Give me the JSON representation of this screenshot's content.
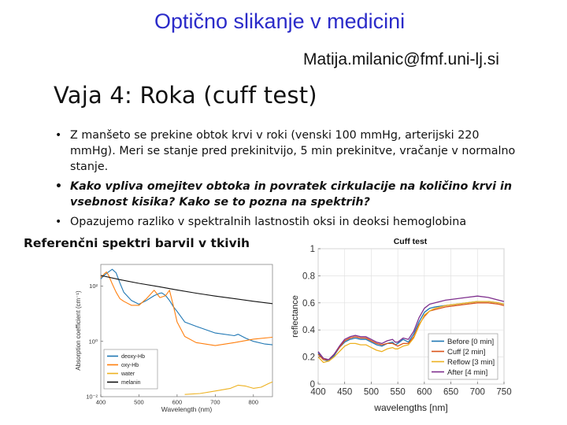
{
  "header": {
    "title": "Optično slikanje v medicini",
    "email": "Matija.milanic@fmf.uni-lj.si"
  },
  "slide": {
    "title": "Vaja 4: Roka (cuff test)",
    "bullets": [
      {
        "text": "Z manšeto se prekine obtok krvi v roki (venski 100 mmHg, arterijski 220 mmHg). Meri se stanje pred prekinitvijo, 5 min prekinitve, vračanje v normalno stanje.",
        "emphasis": false
      },
      {
        "text": "Kako vpliva omejitev obtoka in povratek cirkulacije na količino krvi in vsebnost kisika? Kako se to pozna na spektrih?",
        "emphasis": true
      },
      {
        "text": "Opazujemo razliko v spektralnih lastnostih oksi in deoksi hemoglobina",
        "emphasis": false
      }
    ]
  },
  "figures": {
    "left_title": "Referenčni spektri barvil v tkivih",
    "left_axis": {
      "ylabel": "Absorption coefficient (cm⁻¹)",
      "xlabel": "Wavelength (nm)"
    },
    "right_title": "Cuff test",
    "right_axis": {
      "ylabel": "reflectance",
      "xlabel": "wavelengths [nm]"
    }
  },
  "chart_data": [
    {
      "type": "line",
      "title": "Referenčni spektri barvil v tkivih",
      "xlabel": "Wavelength (nm)",
      "ylabel": "Absorption coefficient (cm⁻¹)",
      "yscale": "log",
      "xlim": [
        400,
        850
      ],
      "ylim": [
        0.01,
        600
      ],
      "xticks": [
        400,
        500,
        600,
        700,
        800
      ],
      "yticks": [
        {
          "value": 100,
          "label": "10²"
        },
        {
          "value": 1,
          "label": "10⁰"
        },
        {
          "value": 0.01,
          "label": "10⁻²"
        }
      ],
      "legend_position": "bottom-left",
      "series": [
        {
          "name": "deoxy-Hb",
          "color": "#1f77b4",
          "x": [
            400,
            410,
            420,
            430,
            440,
            450,
            460,
            480,
            500,
            520,
            540,
            555,
            560,
            570,
            580,
            590,
            600,
            620,
            650,
            700,
            750,
            760,
            780,
            800,
            830,
            850
          ],
          "y": [
            180,
            250,
            320,
            400,
            300,
            130,
            60,
            30,
            22,
            30,
            45,
            55,
            56,
            45,
            30,
            18,
            12,
            5,
            3.5,
            2,
            1.6,
            1.8,
            1.3,
            1.0,
            0.8,
            0.75
          ]
        },
        {
          "name": "oxy-Hb",
          "color": "#ff7f0e",
          "x": [
            400,
            410,
            415,
            420,
            430,
            440,
            450,
            460,
            480,
            500,
            520,
            540,
            555,
            570,
            580,
            590,
            600,
            620,
            650,
            700,
            750,
            800,
            850
          ],
          "y": [
            200,
            280,
            320,
            250,
            120,
            60,
            35,
            28,
            20,
            20,
            35,
            70,
            38,
            45,
            70,
            20,
            5,
            1.5,
            0.9,
            0.7,
            0.9,
            1.2,
            1.4
          ]
        },
        {
          "name": "water",
          "color": "#edb120",
          "x": [
            620,
            660,
            700,
            740,
            760,
            780,
            800,
            820,
            840,
            850
          ],
          "y": [
            0.012,
            0.013,
            0.016,
            0.02,
            0.026,
            0.024,
            0.02,
            0.022,
            0.03,
            0.034
          ]
        },
        {
          "name": "melanin",
          "color": "#111111",
          "x": [
            400,
            450,
            500,
            550,
            600,
            650,
            700,
            750,
            800,
            850
          ],
          "y": [
            240,
            170,
            125,
            95,
            72,
            55,
            43,
            35,
            28,
            23
          ]
        }
      ]
    },
    {
      "type": "line",
      "title": "Cuff test",
      "xlabel": "wavelengths [nm]",
      "ylabel": "reflectance",
      "xlim": [
        400,
        750
      ],
      "ylim": [
        0,
        1
      ],
      "xticks": [
        400,
        450,
        500,
        550,
        600,
        650,
        700,
        750
      ],
      "yticks": [
        0,
        0.2,
        0.4,
        0.6,
        0.8,
        1
      ],
      "grid": true,
      "legend_position": "bottom-right",
      "series": [
        {
          "name": "Before [0 min]",
          "color": "#1f77b4",
          "x": [
            400,
            410,
            420,
            430,
            440,
            450,
            460,
            470,
            480,
            490,
            500,
            510,
            520,
            530,
            540,
            545,
            550,
            560,
            570,
            580,
            590,
            600,
            610,
            620,
            640,
            660,
            680,
            700,
            720,
            740,
            750
          ],
          "y": [
            0.23,
            0.18,
            0.17,
            0.21,
            0.27,
            0.31,
            0.33,
            0.34,
            0.33,
            0.33,
            0.31,
            0.29,
            0.28,
            0.3,
            0.31,
            0.29,
            0.3,
            0.33,
            0.31,
            0.37,
            0.46,
            0.53,
            0.56,
            0.57,
            0.58,
            0.59,
            0.6,
            0.61,
            0.61,
            0.6,
            0.59
          ]
        },
        {
          "name": "Cuff [2 min]",
          "color": "#d95319",
          "x": [
            400,
            410,
            420,
            430,
            440,
            450,
            460,
            470,
            480,
            490,
            500,
            510,
            520,
            530,
            540,
            545,
            550,
            560,
            570,
            580,
            590,
            600,
            610,
            620,
            640,
            660,
            680,
            700,
            720,
            740,
            750
          ],
          "y": [
            0.22,
            0.18,
            0.18,
            0.22,
            0.27,
            0.32,
            0.34,
            0.35,
            0.34,
            0.34,
            0.32,
            0.3,
            0.29,
            0.3,
            0.3,
            0.29,
            0.28,
            0.3,
            0.3,
            0.35,
            0.44,
            0.5,
            0.54,
            0.55,
            0.57,
            0.58,
            0.59,
            0.6,
            0.6,
            0.59,
            0.58
          ]
        },
        {
          "name": "Reflow [3 min]",
          "color": "#edb120",
          "x": [
            400,
            410,
            420,
            430,
            440,
            450,
            460,
            470,
            480,
            490,
            500,
            510,
            520,
            530,
            540,
            545,
            550,
            560,
            570,
            580,
            590,
            600,
            610,
            620,
            640,
            660,
            680,
            700,
            720,
            740,
            750
          ],
          "y": [
            0.2,
            0.16,
            0.17,
            0.2,
            0.24,
            0.28,
            0.3,
            0.3,
            0.29,
            0.29,
            0.27,
            0.25,
            0.24,
            0.26,
            0.27,
            0.26,
            0.26,
            0.28,
            0.29,
            0.34,
            0.43,
            0.51,
            0.54,
            0.56,
            0.58,
            0.59,
            0.6,
            0.61,
            0.61,
            0.6,
            0.59
          ]
        },
        {
          "name": "After [4 min]",
          "color": "#7e2f8e",
          "x": [
            400,
            410,
            420,
            430,
            440,
            450,
            460,
            470,
            480,
            490,
            500,
            510,
            520,
            530,
            540,
            545,
            550,
            560,
            570,
            580,
            590,
            600,
            610,
            620,
            640,
            660,
            680,
            700,
            720,
            740,
            750
          ],
          "y": [
            0.24,
            0.19,
            0.18,
            0.22,
            0.28,
            0.33,
            0.35,
            0.36,
            0.35,
            0.35,
            0.33,
            0.31,
            0.3,
            0.32,
            0.33,
            0.31,
            0.31,
            0.34,
            0.33,
            0.39,
            0.49,
            0.56,
            0.59,
            0.6,
            0.62,
            0.63,
            0.64,
            0.65,
            0.64,
            0.62,
            0.61
          ]
        }
      ]
    }
  ]
}
